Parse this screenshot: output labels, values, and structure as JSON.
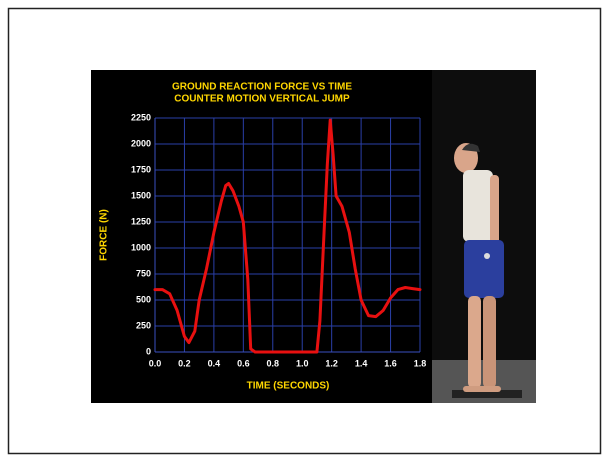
{
  "chart_data": {
    "type": "line",
    "title": "GROUND REACTION FORCE VS TIME",
    "subtitle": "COUNTER MOTION VERTICAL JUMP",
    "x_label": "TIME (SECONDS)",
    "y_label": "FORCE (N)",
    "x": [
      0.0,
      0.05,
      0.1,
      0.15,
      0.2,
      0.23,
      0.27,
      0.3,
      0.35,
      0.4,
      0.45,
      0.48,
      0.5,
      0.53,
      0.57,
      0.6,
      0.63,
      0.65,
      0.68,
      0.8,
      1.0,
      1.1,
      1.12,
      1.15,
      1.17,
      1.19,
      1.21,
      1.23,
      1.27,
      1.32,
      1.36,
      1.4,
      1.45,
      1.5,
      1.55,
      1.6,
      1.65,
      1.7,
      1.75,
      1.8
    ],
    "values": [
      600,
      600,
      560,
      400,
      150,
      90,
      200,
      500,
      800,
      1150,
      1450,
      1600,
      1620,
      1550,
      1400,
      1250,
      700,
      30,
      0,
      0,
      0,
      0,
      300,
      1200,
      1800,
      2230,
      1900,
      1500,
      1400,
      1150,
      800,
      500,
      350,
      340,
      400,
      520,
      600,
      620,
      610,
      600
    ],
    "color": "#e81010",
    "xlim": [
      0,
      1.8
    ],
    "xticks": [
      {
        "value": 0,
        "label": "0.0"
      },
      0.2,
      0.4,
      0.6,
      0.8,
      {
        "value": 1,
        "label": "1.0"
      },
      1.2,
      1.4,
      1.6,
      1.8
    ],
    "ylim": [
      0,
      2250
    ],
    "yticks": [
      0,
      250,
      500,
      750,
      1000,
      1250,
      1500,
      1750,
      2000,
      2250
    ],
    "grid": true
  }
}
